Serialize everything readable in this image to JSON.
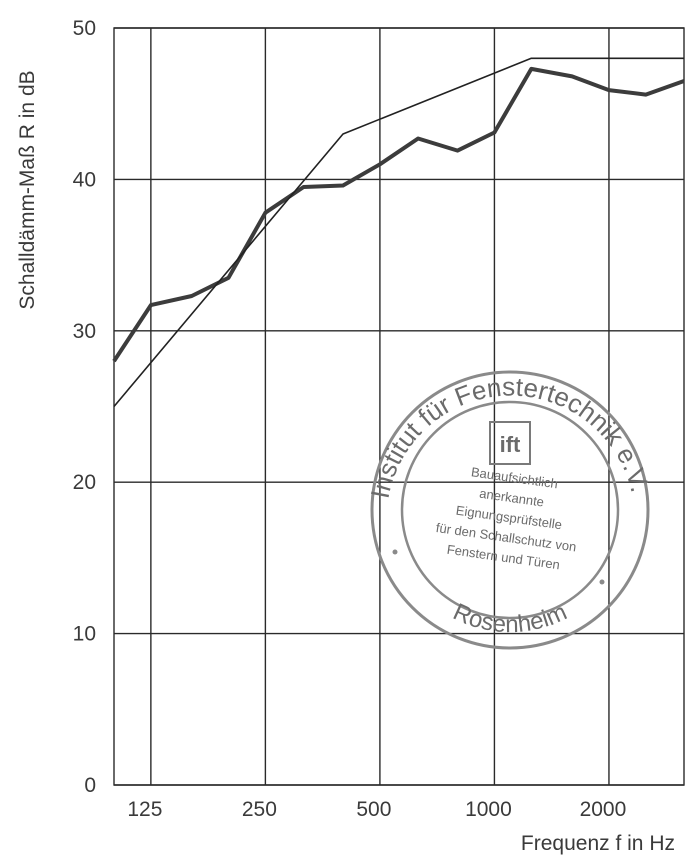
{
  "chart_data": {
    "type": "line",
    "xlabel": "Frequenz f in Hz",
    "ylabel": "Schalldämm-Maß R in dB",
    "x_scale": "log",
    "xlim": [
      100,
      3150
    ],
    "ylim": [
      0,
      50
    ],
    "grid": true,
    "x_ticks": [
      125,
      250,
      500,
      1000,
      2000
    ],
    "x_tick_labels": [
      "125",
      "250",
      "500",
      "1000",
      "2000"
    ],
    "y_ticks": [
      0,
      10,
      20,
      30,
      40,
      50
    ],
    "y_tick_labels": [
      "0",
      "10",
      "20",
      "30",
      "40",
      "50"
    ],
    "series": [
      {
        "style": "thick",
        "color": "#3c3c3c",
        "x": [
          100,
          125,
          160,
          200,
          250,
          315,
          400,
          500,
          630,
          800,
          1000,
          1250,
          1600,
          2000,
          2500,
          3150
        ],
        "y": [
          28.0,
          31.7,
          32.3,
          33.5,
          37.8,
          39.5,
          39.6,
          41.0,
          42.7,
          41.9,
          43.1,
          47.3,
          46.8,
          45.9,
          45.6,
          46.5
        ]
      },
      {
        "style": "thin",
        "color": "#222222",
        "x": [
          100,
          400,
          1250,
          3150
        ],
        "y": [
          25.0,
          43.0,
          48.0,
          48.0
        ]
      }
    ]
  },
  "stamp": {
    "arc_text": "Institut für Fenstertechnik e.V.",
    "bottom_text": "Rosenheim",
    "logo_text": "ift",
    "lines": [
      "Bauaufsichtlich",
      "anerkannte",
      "Eignungsprüfstelle",
      "für den Schallschutz von",
      "Fenstern und Türen"
    ]
  }
}
